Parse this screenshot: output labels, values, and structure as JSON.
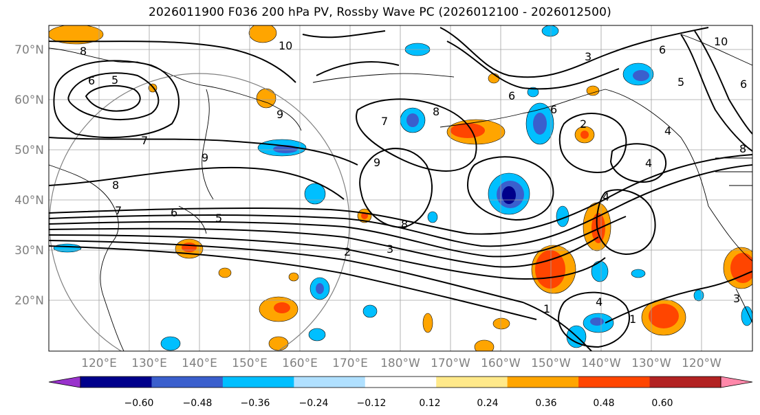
{
  "title": "2026011900 F036 200 hPa PV, Rossby Wave PC (2026012100 - 2026012500)",
  "lat_ticks": [
    "70°N",
    "60°N",
    "50°N",
    "40°N",
    "30°N",
    "20°N"
  ],
  "lon_ticks": [
    "120°E",
    "130°E",
    "140°E",
    "150°E",
    "160°E",
    "170°E",
    "180°W",
    "170°W",
    "160°W",
    "150°W",
    "140°W",
    "130°W",
    "120°W"
  ],
  "colorbar": {
    "colors": [
      "#9932cc",
      "#00008b",
      "#3a5fcd",
      "#00bfff",
      "#b0e0ff",
      "#ffffff",
      "#ffe98a",
      "#ffa500",
      "#ff4500",
      "#b22222",
      "#ff88aa"
    ],
    "labels": [
      "−0.60",
      "−0.48",
      "−0.36",
      "−0.24",
      "−0.12",
      "0.12",
      "0.24",
      "0.36",
      "0.48",
      "0.60"
    ]
  },
  "contour_labels": [
    "8",
    "10",
    "6",
    "5",
    "7",
    "9",
    "8",
    "6",
    "5",
    "9",
    "9",
    "8",
    "7",
    "6",
    "2",
    "3",
    "3",
    "5",
    "7",
    "8",
    "6",
    "4",
    "2",
    "4",
    "1",
    "1",
    "4",
    "3",
    "6",
    "8",
    "4",
    "6",
    "10"
  ],
  "legend_colors": {
    "negative_strong": "#00008b",
    "negative": "#3a5fcd",
    "negative_light": "#00bfff",
    "positive_light": "#ffa500",
    "positive": "#ff4500"
  }
}
